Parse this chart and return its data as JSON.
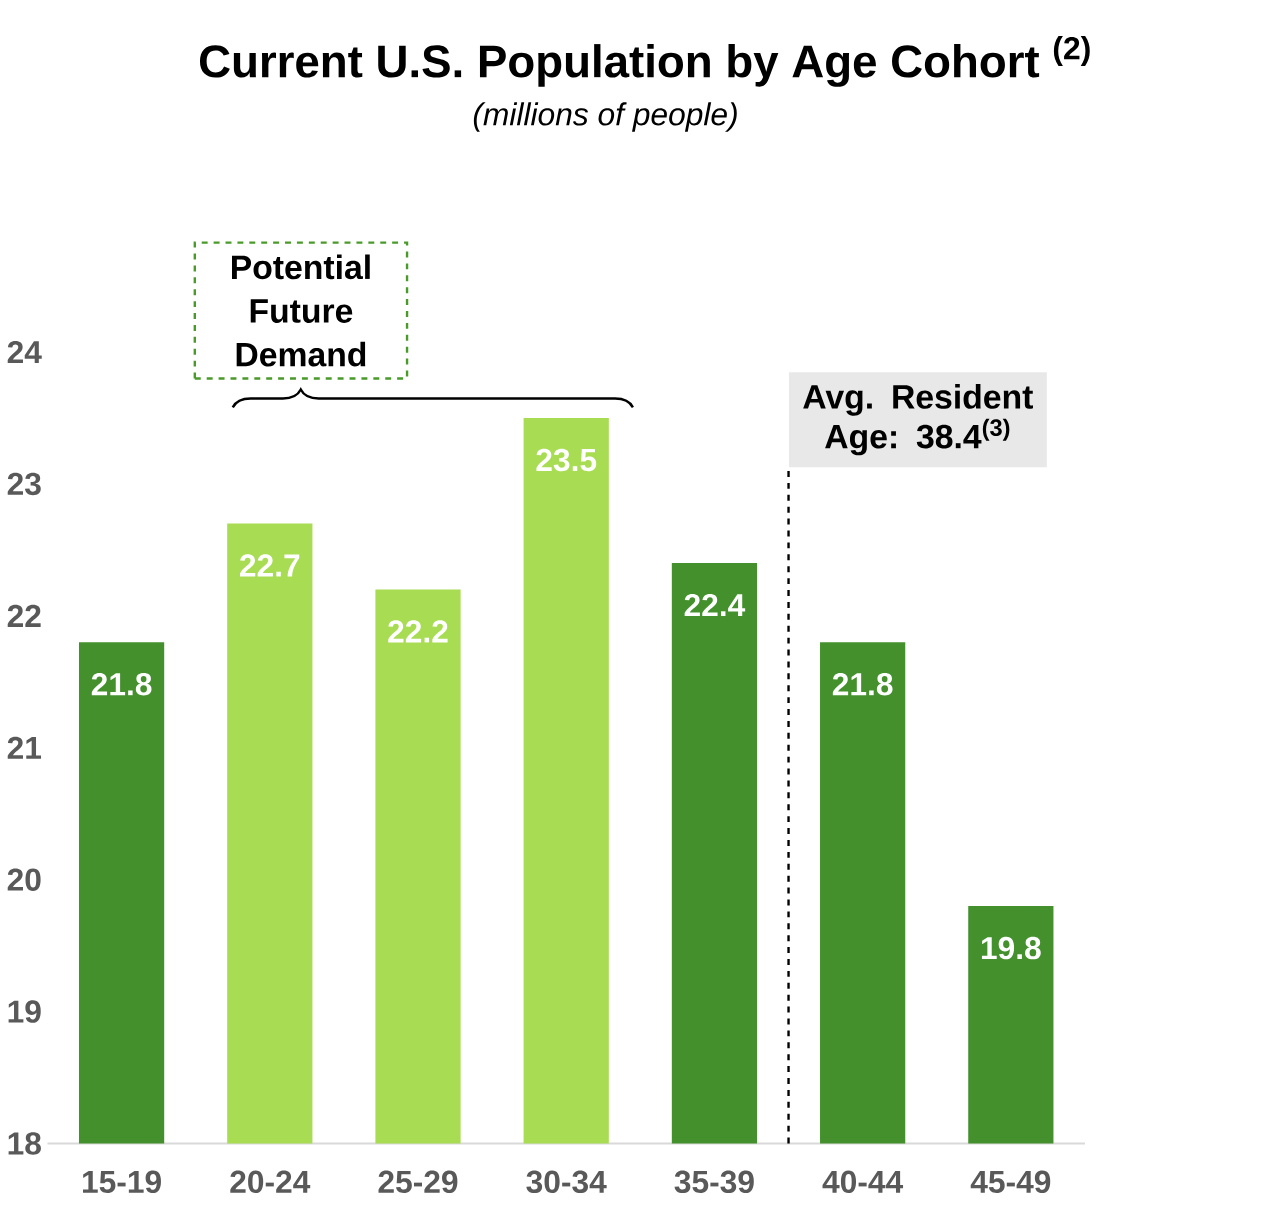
{
  "chart_data": {
    "type": "bar",
    "title": "Current U.S. Population by Age Cohort $^{(2)}$",
    "subtitle": "(millions of people)",
    "categories": [
      "15-19",
      "20-24",
      "25-29",
      "30-34",
      "35-39",
      "40-44",
      "45-49"
    ],
    "values": [
      21.8,
      22.7,
      22.2,
      23.5,
      22.4,
      21.8,
      19.8
    ],
    "colors": [
      "#43902d",
      "#a8dc52",
      "#a8dc52",
      "#a8dc52",
      "#43902d",
      "#43902d",
      "#43902d"
    ],
    "data_labels": true,
    "ylim": [
      18,
      24
    ],
    "yticks": [
      18,
      19,
      20,
      21,
      22,
      23,
      24
    ],
    "grid": false,
    "annotations": [
      "Potential Future Demand",
      "Avg. Resident Age: 38.4$^{(3)}$"
    ]
  }
}
